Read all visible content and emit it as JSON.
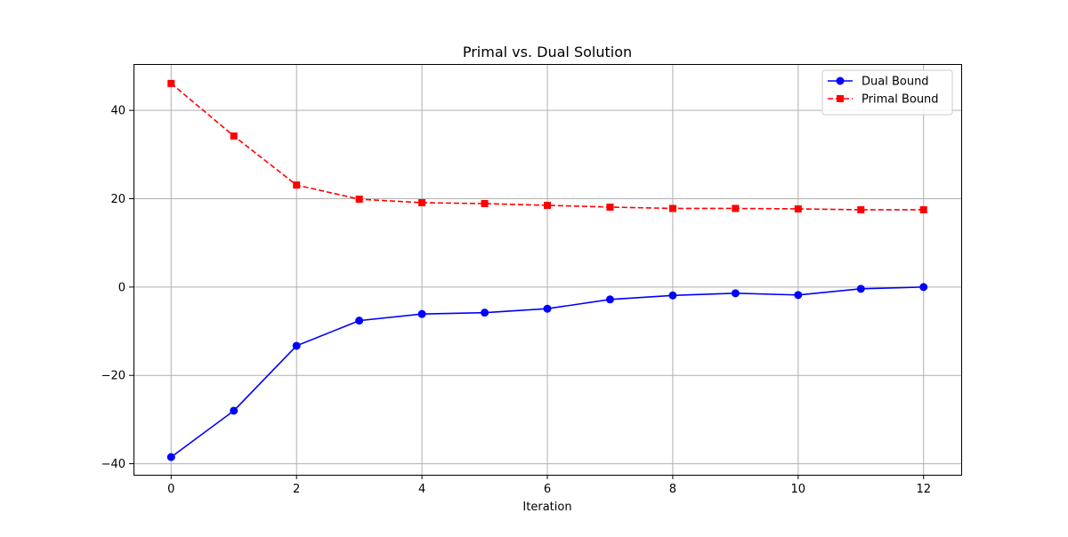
{
  "chart_data": {
    "type": "line",
    "title": "Primal vs. Dual Solution",
    "xlabel": "Iteration",
    "ylabel": "",
    "xlim": [
      -0.6,
      12.6
    ],
    "ylim": [
      -42.5,
      50.5
    ],
    "xticks": [
      0,
      2,
      4,
      6,
      8,
      10,
      12
    ],
    "xtick_labels": [
      "0",
      "2",
      "4",
      "6",
      "8",
      "10",
      "12"
    ],
    "yticks": [
      -40,
      -20,
      0,
      20,
      40
    ],
    "ytick_labels": [
      "−40",
      "−20",
      "0",
      "20",
      "40"
    ],
    "grid": true,
    "legend_position": "upper right",
    "x": [
      0,
      1,
      2,
      3,
      4,
      5,
      6,
      7,
      8,
      9,
      10,
      11,
      12
    ],
    "series": [
      {
        "name": "Dual Bound",
        "color": "#0000ff",
        "line_style": "solid",
        "marker": "circle",
        "values": [
          -38.5,
          -28.0,
          -13.3,
          -7.6,
          -6.1,
          -5.8,
          -4.9,
          -2.8,
          -1.9,
          -1.4,
          -1.8,
          -0.4,
          0.0
        ]
      },
      {
        "name": "Primal Bound",
        "color": "#ff0000",
        "line_style": "dashed",
        "marker": "square",
        "values": [
          46.1,
          34.2,
          23.1,
          19.9,
          19.1,
          18.9,
          18.5,
          18.1,
          17.8,
          17.8,
          17.7,
          17.5,
          17.5
        ]
      }
    ]
  }
}
